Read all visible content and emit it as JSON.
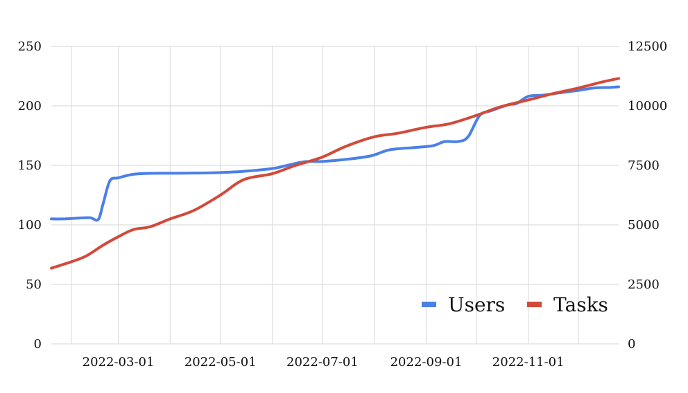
{
  "chart_data": {
    "type": "line",
    "title": "",
    "xlabel": "",
    "ylabel": "",
    "x_ticks": [
      "2022-03-01",
      "2022-05-01",
      "2022-07-01",
      "2022-09-01",
      "2022-11-01"
    ],
    "y_left": {
      "ylim": [
        0,
        250
      ],
      "ticks": [
        "0",
        "50",
        "100",
        "150",
        "200",
        "250"
      ]
    },
    "y_right": {
      "ylim": [
        0,
        12500
      ],
      "ticks": [
        "0",
        "2500",
        "5000",
        "7500",
        "10000",
        "12500"
      ]
    },
    "xlim": [
      "2022-01-20",
      "2022-12-25"
    ],
    "grid": true,
    "legend_position": "bottom-right",
    "series": [
      {
        "name": "Users",
        "axis": "left",
        "color": "#4a80e8",
        "points": [
          [
            "2022-01-20",
            105
          ],
          [
            "2022-01-27",
            105
          ],
          [
            "2022-02-04",
            105.6
          ],
          [
            "2022-02-12",
            106
          ],
          [
            "2022-02-17",
            104.5
          ],
          [
            "2022-02-20",
            118
          ],
          [
            "2022-02-24",
            137
          ],
          [
            "2022-03-01",
            139.5
          ],
          [
            "2022-03-10",
            142.5
          ],
          [
            "2022-03-20",
            143.3
          ],
          [
            "2022-04-01",
            143.4
          ],
          [
            "2022-04-15",
            143.5
          ],
          [
            "2022-05-01",
            144
          ],
          [
            "2022-05-15",
            145
          ],
          [
            "2022-06-01",
            147.3
          ],
          [
            "2022-06-10",
            150
          ],
          [
            "2022-06-20",
            153
          ],
          [
            "2022-07-01",
            153.3
          ],
          [
            "2022-07-15",
            155
          ],
          [
            "2022-07-30",
            158
          ],
          [
            "2022-08-10",
            163
          ],
          [
            "2022-08-25",
            165
          ],
          [
            "2022-09-05",
            166.5
          ],
          [
            "2022-09-12",
            170
          ],
          [
            "2022-09-20",
            170
          ],
          [
            "2022-09-26",
            174
          ],
          [
            "2022-10-03",
            192
          ],
          [
            "2022-10-10",
            196
          ],
          [
            "2022-10-20",
            201
          ],
          [
            "2022-10-25",
            202
          ],
          [
            "2022-11-01",
            208
          ],
          [
            "2022-11-10",
            209
          ],
          [
            "2022-11-20",
            211
          ],
          [
            "2022-12-01",
            213
          ],
          [
            "2022-12-10",
            215
          ],
          [
            "2022-12-20",
            215.5
          ],
          [
            "2022-12-25",
            216
          ]
        ]
      },
      {
        "name": "Tasks",
        "axis": "right",
        "color": "#d24a3a",
        "points": [
          [
            "2022-01-20",
            3180
          ],
          [
            "2022-02-01",
            3450
          ],
          [
            "2022-02-10",
            3700
          ],
          [
            "2022-02-20",
            4150
          ],
          [
            "2022-03-01",
            4500
          ],
          [
            "2022-03-10",
            4800
          ],
          [
            "2022-03-20",
            4920
          ],
          [
            "2022-04-01",
            5250
          ],
          [
            "2022-04-15",
            5600
          ],
          [
            "2022-05-01",
            6250
          ],
          [
            "2022-05-15",
            6900
          ],
          [
            "2022-06-01",
            7150
          ],
          [
            "2022-06-15",
            7500
          ],
          [
            "2022-07-01",
            7850
          ],
          [
            "2022-07-15",
            8300
          ],
          [
            "2022-08-01",
            8700
          ],
          [
            "2022-08-15",
            8850
          ],
          [
            "2022-09-01",
            9100
          ],
          [
            "2022-09-15",
            9250
          ],
          [
            "2022-10-01",
            9600
          ],
          [
            "2022-10-15",
            9950
          ],
          [
            "2022-11-01",
            10250
          ],
          [
            "2022-11-15",
            10500
          ],
          [
            "2022-12-01",
            10750
          ],
          [
            "2022-12-15",
            11000
          ],
          [
            "2022-12-25",
            11150
          ]
        ]
      }
    ]
  }
}
